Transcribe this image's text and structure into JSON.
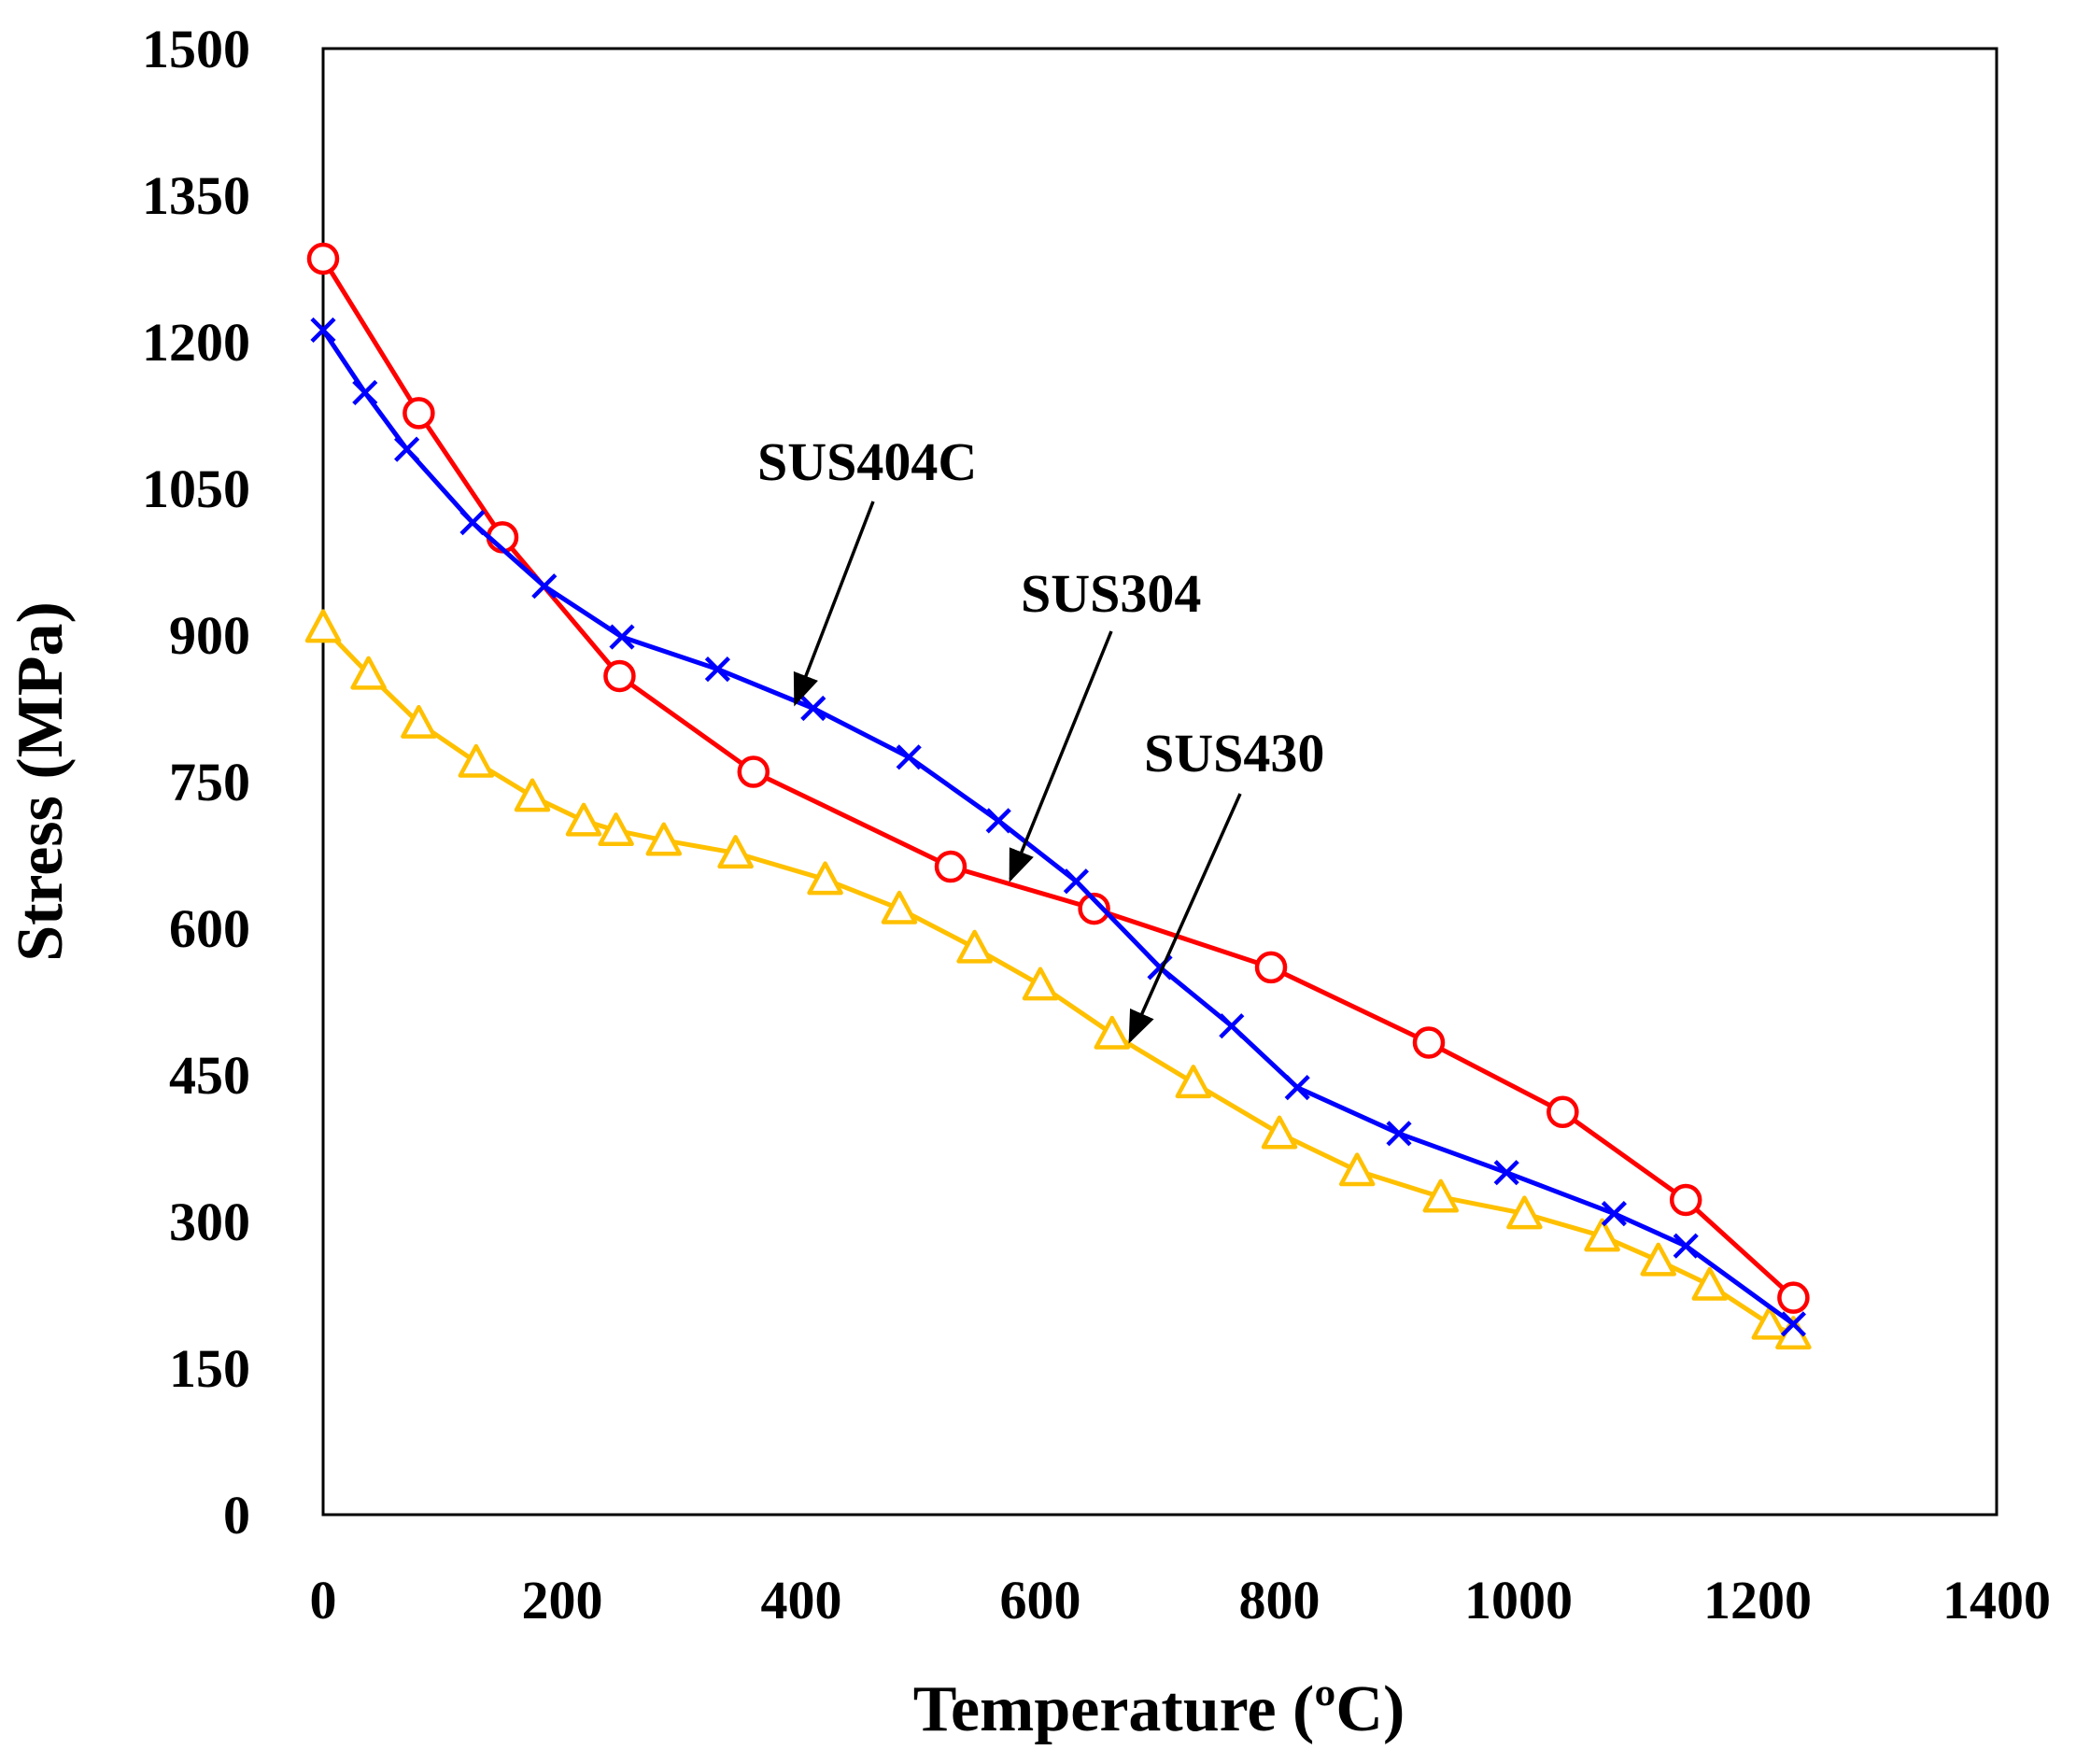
{
  "chart_data": {
    "type": "line",
    "title": "",
    "xlabel": "Temperature (ºC)",
    "ylabel": "Stress (MPa)",
    "xlim": [
      0,
      1400
    ],
    "ylim": [
      0,
      1500
    ],
    "xticks": [
      0,
      200,
      400,
      600,
      800,
      1000,
      1200,
      1400
    ],
    "yticks": [
      0,
      150,
      300,
      450,
      600,
      750,
      900,
      1050,
      1200,
      1350,
      1500
    ],
    "xtick_labels": [
      "0",
      "200",
      "400",
      "600",
      "800",
      "1000",
      "1200",
      "1400"
    ],
    "ytick_labels": [
      "0",
      "150",
      "300",
      "450",
      "600",
      "750",
      "900",
      "1050",
      "1200",
      "1350",
      "1500"
    ],
    "grid": false,
    "series": [
      {
        "name": "SUS304",
        "color": "#ff0000",
        "marker": "circle",
        "x": [
          0,
          80,
          150,
          248,
          360,
          525,
          645,
          793,
          925,
          1037,
          1140,
          1230
        ],
        "y": [
          1285,
          1127,
          1000,
          858,
          760,
          663,
          620,
          560,
          483,
          412,
          322,
          222
        ]
      },
      {
        "name": "SUS404C",
        "color": "#0000ff",
        "marker": "x",
        "x": [
          0,
          35,
          70,
          125,
          185,
          250,
          330,
          410,
          490,
          565,
          630,
          700,
          760,
          815,
          900,
          990,
          1080,
          1140,
          1230
        ],
        "y": [
          1212,
          1148,
          1090,
          1015,
          950,
          898,
          865,
          825,
          775,
          710,
          648,
          560,
          500,
          437,
          390,
          350,
          308,
          275,
          195
        ]
      },
      {
        "name": "SUS430",
        "color": "#ffc000",
        "marker": "triangle",
        "x": [
          0,
          38,
          80,
          128,
          175,
          218,
          245,
          285,
          345,
          420,
          482,
          545,
          600,
          660,
          728,
          800,
          865,
          935,
          1005,
          1070,
          1117,
          1160,
          1210,
          1230
        ],
        "y": [
          908,
          860,
          810,
          770,
          735,
          710,
          700,
          690,
          677,
          650,
          620,
          580,
          542,
          492,
          442,
          390,
          352,
          325,
          308,
          285,
          260,
          235,
          195,
          185
        ]
      }
    ],
    "annotations": [
      {
        "text": "SUS404C",
        "series": "SUS404C",
        "x": 395,
        "y": 830
      },
      {
        "text": "SUS304",
        "series": "SUS304",
        "x": 575,
        "y": 650
      },
      {
        "text": "SUS430",
        "series": "SUS430",
        "x": 675,
        "y": 485
      }
    ]
  }
}
